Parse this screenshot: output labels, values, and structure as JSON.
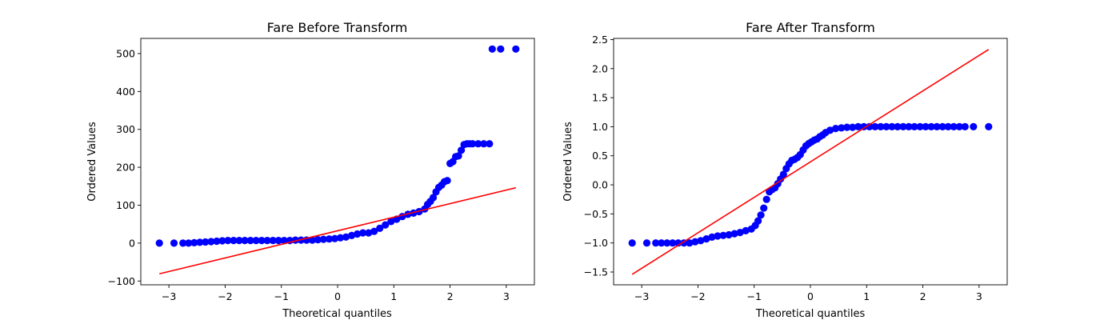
{
  "chart_data": [
    {
      "type": "scatter",
      "title": "Fare Before Transform",
      "xlabel": "Theoretical quantiles",
      "ylabel": "Ordered Values",
      "xlim": [
        -3.5,
        3.5
      ],
      "ylim": [
        -110,
        540
      ],
      "x_ticks": [
        -3,
        -2,
        -1,
        0,
        1,
        2,
        3
      ],
      "y_ticks": [
        -100,
        0,
        100,
        200,
        300,
        400,
        500
      ],
      "x_tick_labels": [
        "−3",
        "−2",
        "−1",
        "0",
        "1",
        "2",
        "3"
      ],
      "y_tick_labels": [
        "−100",
        "0",
        "100",
        "200",
        "300",
        "400",
        "500"
      ],
      "grid": false,
      "point_color": "#0000ff",
      "line_color": "#ff0000",
      "fit_line": {
        "x": [
          -3.17,
          3.17
        ],
        "y": [
          -81,
          146
        ]
      },
      "points": {
        "x": [
          -3.17,
          -2.91,
          -2.75,
          -2.65,
          -2.55,
          -2.45,
          -2.35,
          -2.25,
          -2.15,
          -2.05,
          -1.95,
          -1.85,
          -1.75,
          -1.65,
          -1.55,
          -1.45,
          -1.35,
          -1.25,
          -1.15,
          -1.05,
          -0.95,
          -0.85,
          -0.75,
          -0.65,
          -0.55,
          -0.45,
          -0.35,
          -0.25,
          -0.15,
          -0.05,
          0.05,
          0.15,
          0.25,
          0.35,
          0.45,
          0.55,
          0.65,
          0.75,
          0.85,
          0.95,
          1.05,
          1.15,
          1.25,
          1.35,
          1.45,
          1.55,
          1.6,
          1.65,
          1.7,
          1.75,
          1.8,
          1.85,
          1.9,
          1.95,
          2.0,
          2.05,
          2.1,
          2.15,
          2.2,
          2.25,
          2.3,
          2.35,
          2.4,
          2.5,
          2.6,
          2.7,
          2.75,
          2.9,
          3.17
        ],
        "y": [
          0,
          0,
          0,
          0,
          1,
          2,
          3,
          4,
          5,
          6,
          7,
          7,
          7,
          7,
          7,
          7,
          7,
          7,
          7,
          7,
          7,
          7,
          8,
          8,
          8,
          8,
          9,
          10,
          11,
          12,
          14,
          16,
          20,
          24,
          27,
          27,
          31,
          39,
          48,
          57,
          63,
          70,
          76,
          79,
          83,
          90,
          102,
          110,
          120,
          135,
          147,
          153,
          162,
          165,
          210,
          215,
          228,
          230,
          245,
          260,
          262,
          262,
          262,
          262,
          262,
          262,
          512,
          512,
          512
        ]
      }
    },
    {
      "type": "scatter",
      "title": "Fare After Transform",
      "xlabel": "Theoretical quantiles",
      "ylabel": "Ordered Values",
      "xlim": [
        -3.5,
        3.5
      ],
      "ylim": [
        -1.72,
        2.52
      ],
      "x_ticks": [
        -3,
        -2,
        -1,
        0,
        1,
        2,
        3
      ],
      "y_ticks": [
        -1.5,
        -1.0,
        -0.5,
        0.0,
        0.5,
        1.0,
        1.5,
        2.0,
        2.5
      ],
      "x_tick_labels": [
        "−3",
        "−2",
        "−1",
        "0",
        "1",
        "2",
        "3"
      ],
      "y_tick_labels": [
        "−1.5",
        "−1.0",
        "−0.5",
        "0.0",
        "0.5",
        "1.0",
        "1.5",
        "2.0",
        "2.5"
      ],
      "grid": false,
      "point_color": "#0000ff",
      "line_color": "#ff0000",
      "fit_line": {
        "x": [
          -3.17,
          3.17
        ],
        "y": [
          -1.54,
          2.33
        ]
      },
      "points": {
        "x": [
          -3.17,
          -2.91,
          -2.75,
          -2.65,
          -2.55,
          -2.45,
          -2.35,
          -2.25,
          -2.15,
          -2.05,
          -1.95,
          -1.85,
          -1.75,
          -1.65,
          -1.55,
          -1.45,
          -1.35,
          -1.25,
          -1.15,
          -1.05,
          -0.98,
          -0.93,
          -0.88,
          -0.83,
          -0.78,
          -0.73,
          -0.68,
          -0.63,
          -0.58,
          -0.53,
          -0.48,
          -0.43,
          -0.38,
          -0.33,
          -0.28,
          -0.23,
          -0.18,
          -0.13,
          -0.08,
          -0.03,
          0.02,
          0.07,
          0.12,
          0.17,
          0.22,
          0.27,
          0.35,
          0.45,
          0.55,
          0.65,
          0.75,
          0.85,
          0.95,
          1.05,
          1.15,
          1.25,
          1.35,
          1.45,
          1.55,
          1.65,
          1.75,
          1.85,
          1.95,
          2.05,
          2.15,
          2.25,
          2.35,
          2.45,
          2.55,
          2.65,
          2.75,
          2.9,
          3.17
        ],
        "y": [
          -1.0,
          -1.0,
          -1.0,
          -1.0,
          -1.0,
          -1.0,
          -1.0,
          -1.0,
          -1.0,
          -0.98,
          -0.96,
          -0.93,
          -0.9,
          -0.88,
          -0.87,
          -0.86,
          -0.84,
          -0.82,
          -0.79,
          -0.76,
          -0.7,
          -0.62,
          -0.52,
          -0.4,
          -0.25,
          -0.12,
          -0.08,
          -0.05,
          0.02,
          0.1,
          0.18,
          0.28,
          0.36,
          0.42,
          0.44,
          0.47,
          0.52,
          0.6,
          0.67,
          0.71,
          0.74,
          0.77,
          0.79,
          0.83,
          0.86,
          0.9,
          0.94,
          0.97,
          0.98,
          0.99,
          0.99,
          1.0,
          1.0,
          1.0,
          1.0,
          1.0,
          1.0,
          1.0,
          1.0,
          1.0,
          1.0,
          1.0,
          1.0,
          1.0,
          1.0,
          1.0,
          1.0,
          1.0,
          1.0,
          1.0,
          1.0,
          1.0,
          1.0
        ]
      }
    }
  ]
}
